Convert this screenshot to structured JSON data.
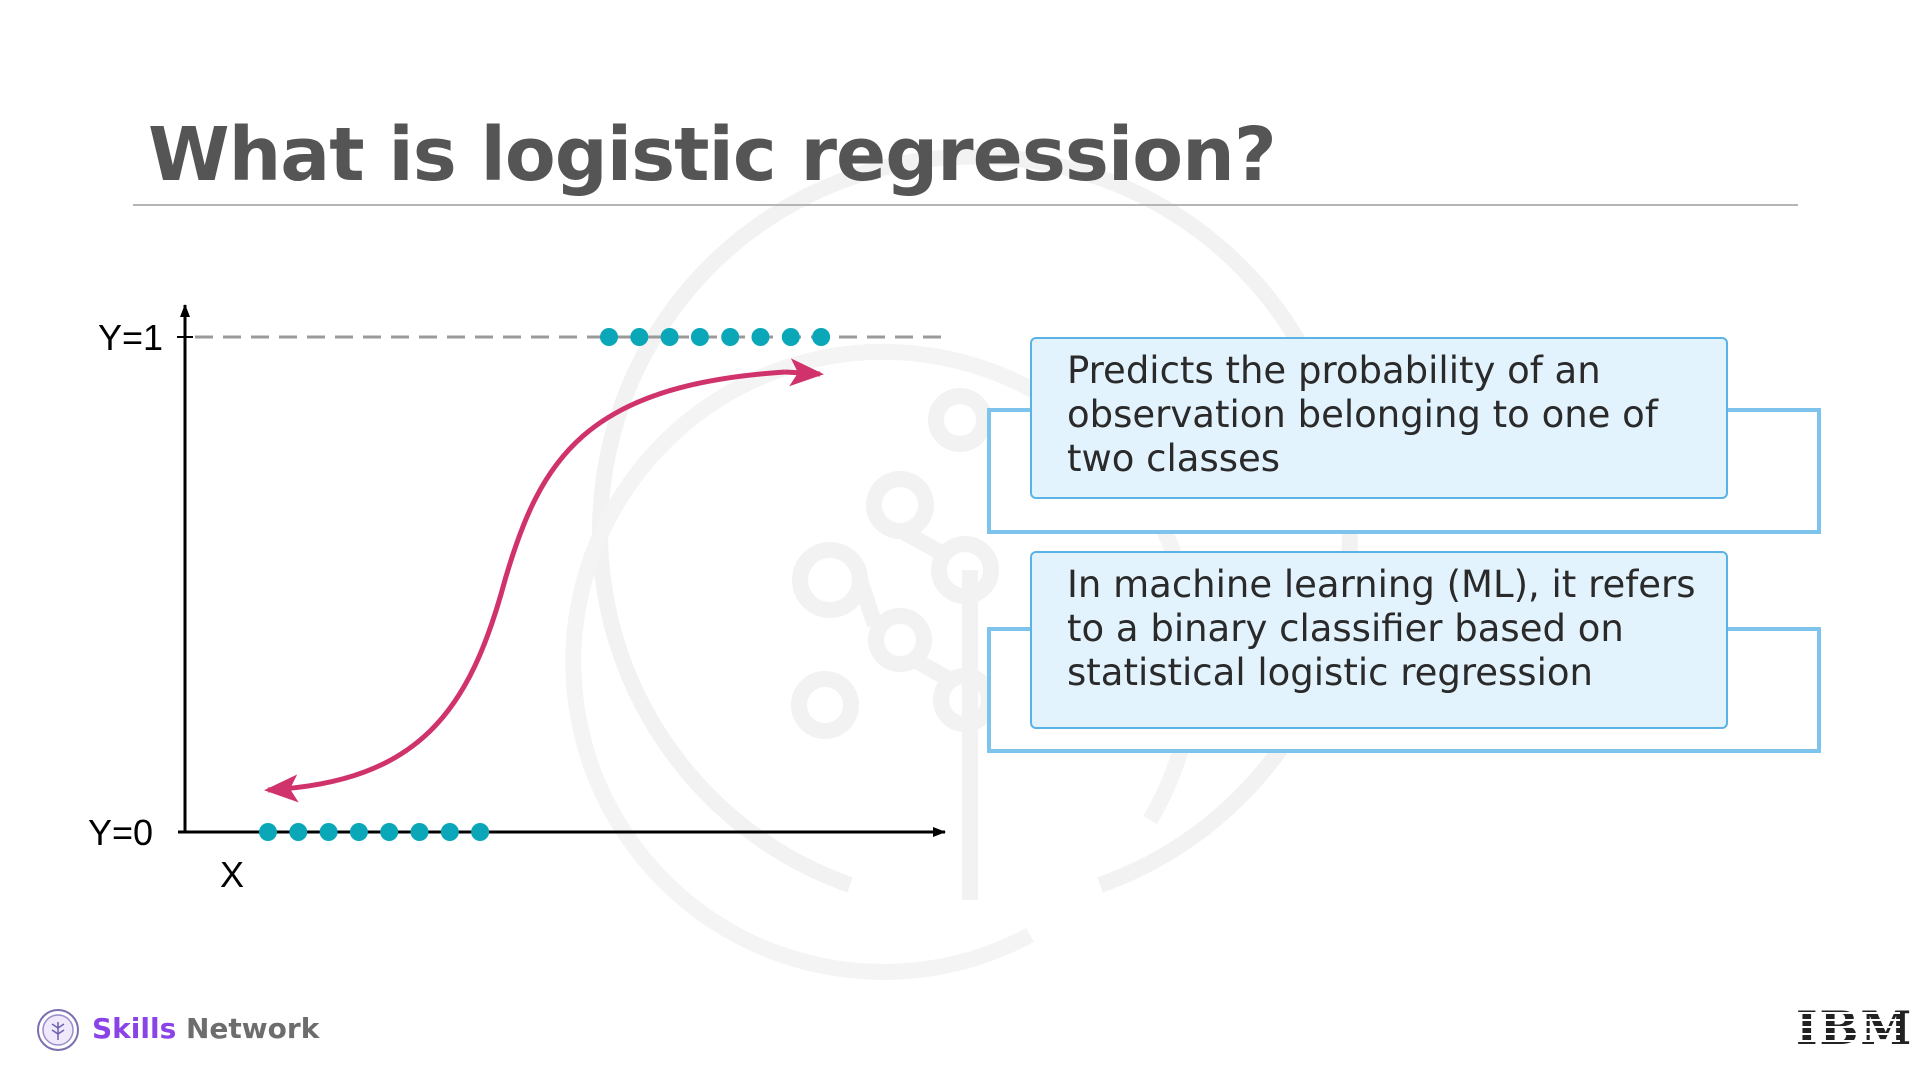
{
  "slide": {
    "title": "What is logistic regression?"
  },
  "chart_data": {
    "type": "scatter",
    "y_labels": [
      "Y=1",
      "Y=0"
    ],
    "x_label": "X",
    "series": [
      {
        "class": "Y=1",
        "points": [
          1,
          1,
          1,
          1,
          1,
          1,
          1,
          1
        ]
      },
      {
        "class": "Y=0",
        "points": [
          0,
          0,
          0,
          0,
          0,
          0,
          0,
          0
        ]
      }
    ],
    "curve": "sigmoid",
    "colors": {
      "points": "#0aa7b8",
      "curve": "#d0336b",
      "axis": "#000000",
      "dash": "#9a9a9a"
    }
  },
  "cards": [
    {
      "text": "Predicts the probability of an observation belonging to one of two classes"
    },
    {
      "text": "In machine learning (ML), it refers to a binary classifier based on statistical logistic regression"
    }
  ],
  "footer": {
    "brand_accent": "Skills",
    "brand_rest": "Network",
    "logo_icon": "skills-network-logo-icon",
    "company_logo": "IBM"
  }
}
